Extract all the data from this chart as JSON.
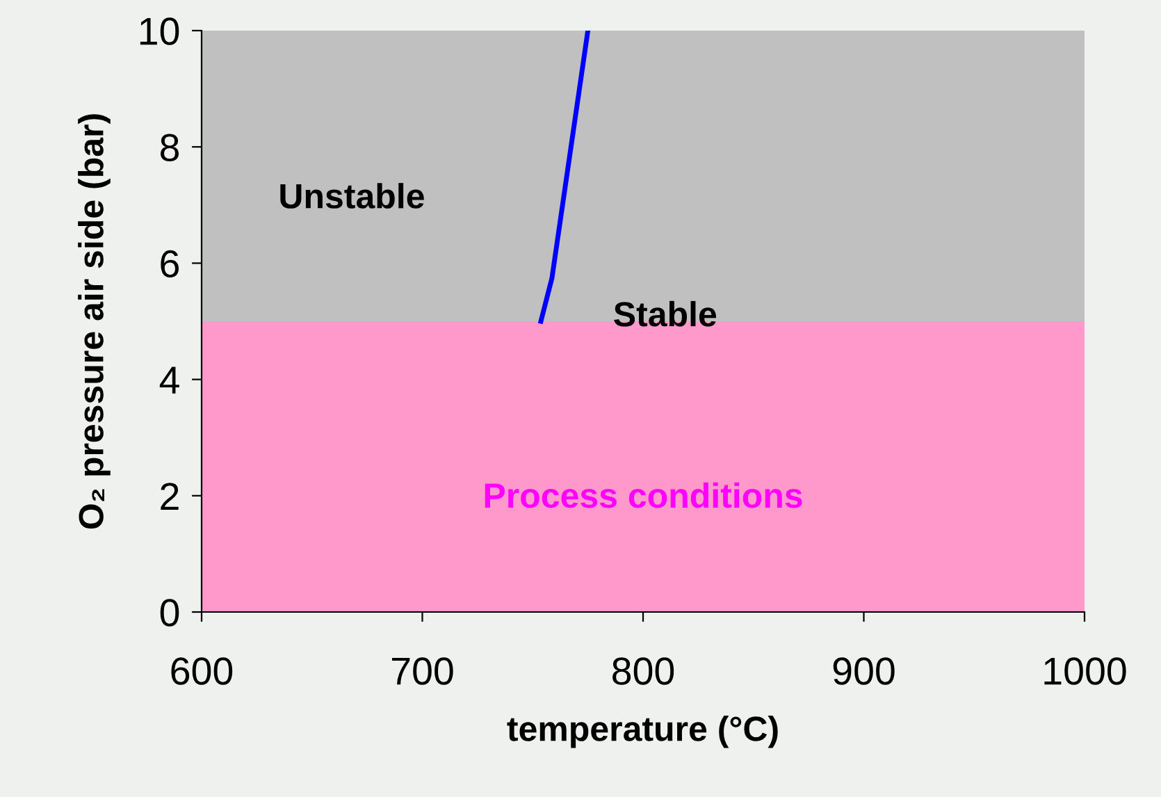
{
  "chart_data": {
    "type": "line",
    "xlabel": "temperature (°C)",
    "ylabel": "O₂ pressure air side (bar)",
    "series": [
      {
        "color": "#0000ff",
        "x": [
          753.7,
          758.7,
          775
        ],
        "values": [
          5.0,
          5.74,
          10
        ]
      }
    ],
    "xlim": [
      600,
      1000
    ],
    "xticks": [
      600,
      700,
      800,
      900,
      1000
    ],
    "ylim": [
      0,
      10
    ],
    "yticks": [
      0,
      2,
      4,
      6,
      8,
      10
    ],
    "bands": [
      {
        "axis": "y",
        "from": 0,
        "to": 5,
        "label": "Process conditions",
        "color": "#ff99cc"
      }
    ],
    "annotations": [
      "Unstable",
      {
        "text": "Stable",
        "x": 810,
        "y": 5.07
      }
    ],
    "grid": false,
    "legend": false,
    "marker": "none",
    "line_style": "solid"
  }
}
